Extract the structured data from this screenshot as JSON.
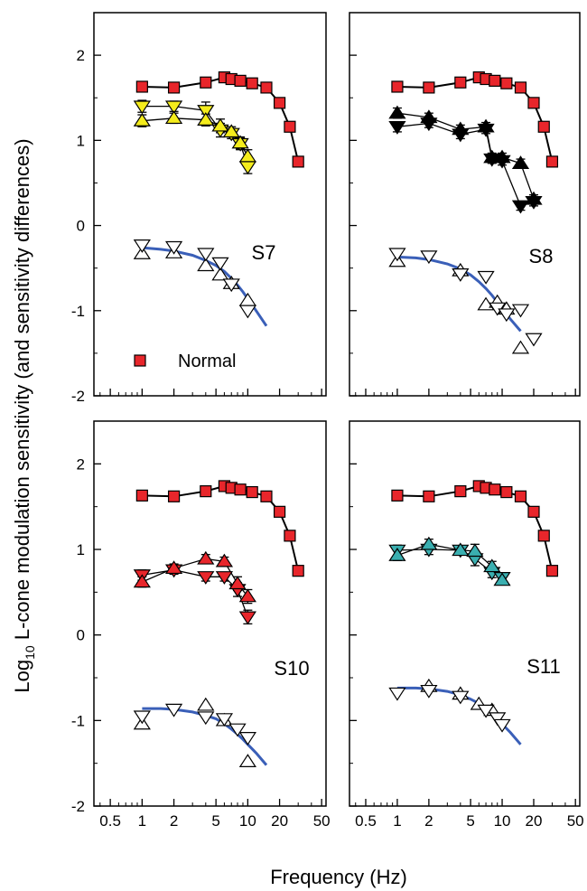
{
  "chart_data": {
    "type": "scatter",
    "xlabel": "Frequency (Hz)",
    "ylabel_pre": "Log",
    "ylabel_sub": "10",
    "ylabel_post": " L-cone modulation sensitivity (and sensitivity differences)",
    "x_scale": "log",
    "xlim": [
      0.35,
      55
    ],
    "ylim": [
      -2,
      2.5
    ],
    "x_ticks": [
      0.5,
      1,
      2,
      5,
      10,
      20,
      50
    ],
    "x_tick_labels": [
      "0.5",
      "1",
      "2",
      "5",
      "10",
      "20",
      "50"
    ],
    "y_ticks": [
      -2,
      -1,
      0,
      1,
      2
    ],
    "y_tick_labels": [
      "-2",
      "-1",
      "0",
      "1",
      "2"
    ],
    "legend": {
      "label": "Normal",
      "placement": "lower-left (S7 panel)"
    },
    "normal": {
      "name": "Normal",
      "color": "#e8262b",
      "x": [
        1,
        2,
        4,
        6,
        7,
        8.5,
        11,
        15,
        20,
        25,
        30
      ],
      "y": [
        1.63,
        1.62,
        1.68,
        1.74,
        1.72,
        1.7,
        1.67,
        1.62,
        1.44,
        1.16,
        0.75
      ]
    },
    "panels": [
      {
        "label": "S7",
        "fill": "#f4ec1c",
        "up": {
          "x": [
            1,
            2,
            4,
            5.5,
            7,
            8.5,
            10
          ],
          "y": [
            1.23,
            1.26,
            1.24,
            1.17,
            1.1,
            0.97,
            0.81
          ],
          "err": [
            0.07,
            0.06,
            0.07,
            0.08,
            0.06,
            0.07,
            0.08
          ]
        },
        "down": {
          "x": [
            1,
            2,
            4,
            5.5,
            7,
            8.5,
            10
          ],
          "y": [
            1.4,
            1.4,
            1.35,
            1.12,
            1.08,
            0.96,
            0.69
          ],
          "err": [
            0.07,
            0.06,
            0.1,
            0.08,
            0.06,
            0.07,
            0.08
          ]
        },
        "diff_up": {
          "x": [
            1,
            2,
            4,
            5.5,
            7,
            10
          ],
          "y": [
            -0.33,
            -0.32,
            -0.47,
            -0.58,
            -0.68,
            -0.88
          ]
        },
        "diff_down": {
          "x": [
            1,
            2,
            4,
            5.5,
            7,
            10
          ],
          "y": [
            -0.23,
            -0.25,
            -0.33,
            -0.44,
            -0.69,
            -1.0
          ]
        },
        "fit": {
          "x": [
            1,
            1.5,
            2,
            3,
            4,
            5,
            6,
            7,
            8,
            9,
            10,
            12,
            15
          ],
          "y": [
            -0.26,
            -0.28,
            -0.3,
            -0.35,
            -0.41,
            -0.47,
            -0.54,
            -0.62,
            -0.7,
            -0.78,
            -0.86,
            -1.0,
            -1.18
          ]
        }
      },
      {
        "label": "S8",
        "fill": "#000000",
        "up": {
          "x": [
            1,
            2,
            4,
            7,
            8,
            10,
            15,
            20
          ],
          "y": [
            1.32,
            1.27,
            1.13,
            1.16,
            0.8,
            0.8,
            0.73,
            0.31
          ],
          "err": [
            0.06,
            0.05,
            0.05,
            0.05,
            0.05,
            0.05,
            0.05,
            0.05
          ]
        },
        "down": {
          "x": [
            1,
            2,
            4,
            7,
            8,
            10,
            15,
            20
          ],
          "y": [
            1.16,
            1.2,
            1.07,
            1.13,
            0.78,
            0.76,
            0.23,
            0.28
          ],
          "err": [
            0.06,
            0.05,
            0.05,
            0.05,
            0.05,
            0.05,
            0.05,
            0.05
          ]
        },
        "diff_up": {
          "x": [
            1,
            4,
            7,
            9,
            11,
            15
          ],
          "y": [
            -0.42,
            -0.53,
            -0.93,
            -0.9,
            -0.98,
            -1.44
          ]
        },
        "diff_down": {
          "x": [
            1,
            2,
            4,
            7,
            9,
            11,
            15,
            20
          ],
          "y": [
            -0.33,
            -0.36,
            -0.57,
            -0.6,
            -0.97,
            -1.04,
            -0.99,
            -1.33
          ]
        },
        "fit": {
          "x": [
            1,
            1.5,
            2,
            3,
            4,
            5,
            6,
            7,
            8,
            9,
            10,
            12,
            15
          ],
          "y": [
            -0.37,
            -0.38,
            -0.4,
            -0.45,
            -0.51,
            -0.58,
            -0.66,
            -0.74,
            -0.82,
            -0.9,
            -0.98,
            -1.1,
            -1.24
          ]
        }
      },
      {
        "label": "S10",
        "fill": "#e8262b",
        "up": {
          "x": [
            1,
            2,
            4,
            6,
            8,
            10
          ],
          "y": [
            0.62,
            0.78,
            0.89,
            0.86,
            0.6,
            0.45
          ],
          "err": [
            0.06,
            0.05,
            0.05,
            0.05,
            0.08,
            0.08
          ]
        },
        "down": {
          "x": [
            1,
            2,
            4,
            6,
            8,
            10
          ],
          "y": [
            0.7,
            0.76,
            0.68,
            0.68,
            0.53,
            0.21
          ],
          "err": [
            0.06,
            0.05,
            0.05,
            0.05,
            0.08,
            0.08
          ]
        },
        "diff_up": {
          "x": [
            1,
            4,
            6,
            10
          ],
          "y": [
            -1.04,
            -0.82,
            -1.0,
            -1.48
          ]
        },
        "diff_down": {
          "x": [
            1,
            2,
            4,
            6,
            8,
            10
          ],
          "y": [
            -0.95,
            -0.87,
            -0.96,
            -0.98,
            -1.1,
            -1.2
          ]
        },
        "fit": {
          "x": [
            1,
            1.5,
            2,
            3,
            4,
            5,
            6,
            7,
            8,
            9,
            10,
            12,
            15
          ],
          "y": [
            -0.86,
            -0.86,
            -0.87,
            -0.9,
            -0.94,
            -0.98,
            -1.04,
            -1.1,
            -1.16,
            -1.22,
            -1.28,
            -1.38,
            -1.52
          ]
        }
      },
      {
        "label": "S11",
        "fill": "#3aafb0",
        "up": {
          "x": [
            1,
            2,
            4,
            5.5,
            8,
            10
          ],
          "y": [
            0.93,
            1.06,
            0.99,
            0.98,
            0.8,
            0.64
          ],
          "err": [
            0.06,
            0.06,
            0.05,
            0.08,
            0.06,
            0.05
          ]
        },
        "down": {
          "x": [
            1,
            2,
            4,
            5.5,
            8,
            10
          ],
          "y": [
            0.99,
            1.0,
            0.99,
            0.89,
            0.73,
            0.67
          ],
          "err": [
            0.06,
            0.06,
            0.05,
            0.08,
            0.06,
            0.05
          ]
        },
        "diff_up": {
          "x": [
            2,
            4,
            6,
            8
          ],
          "y": [
            -0.6,
            -0.69,
            -0.81,
            -0.88
          ]
        },
        "diff_down": {
          "x": [
            1,
            2,
            4,
            7,
            9,
            10
          ],
          "y": [
            -0.68,
            -0.65,
            -0.72,
            -0.88,
            -0.97,
            -1.05
          ]
        },
        "fit": {
          "x": [
            1,
            1.5,
            2,
            3,
            4,
            5,
            6,
            7,
            8,
            9,
            10,
            12,
            15
          ],
          "y": [
            -0.62,
            -0.62,
            -0.63,
            -0.66,
            -0.7,
            -0.75,
            -0.8,
            -0.86,
            -0.92,
            -0.98,
            -1.04,
            -1.14,
            -1.28
          ]
        }
      }
    ]
  },
  "colors": {
    "normal_fill": "#e8262b",
    "fit_line": "#3a5fb8",
    "marker_edge": "#000000"
  }
}
